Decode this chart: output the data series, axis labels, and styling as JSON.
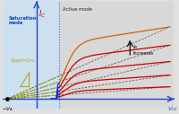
{
  "fig_width": 2.0,
  "fig_height": 1.27,
  "dpi": 100,
  "bg_color": "#e0e0e0",
  "sat_bg_color": "#cce0f0",
  "active_bg_color": "#d8d8d8",
  "Va": -0.22,
  "Vce_max": 1.0,
  "Ic_max": 1.0,
  "sat_boundary": 0.17,
  "IB_levels": [
    0.08,
    0.17,
    0.28,
    0.42,
    0.58
  ],
  "active_slopes": [
    0.06,
    0.1,
    0.14,
    0.18,
    0.22
  ],
  "slope_triangle_color": "#b8a000",
  "dashed_black_color": "#444422",
  "dashed_yellow_color": "#aaaa00",
  "active_line_colors": [
    "#cc0000",
    "#cc0000",
    "#cc0000",
    "#cc0000",
    "#cc6600"
  ],
  "sat_line_blue": "#1122cc",
  "sat_bound_color": "#4466cc",
  "axis_color": "#2244cc",
  "Ic_label_color": "#cc0000",
  "sat_label_color": "#1144bb",
  "active_label_color": "#222222",
  "slope_label_color": "#aaaa00",
  "arrow_color": "#111111"
}
